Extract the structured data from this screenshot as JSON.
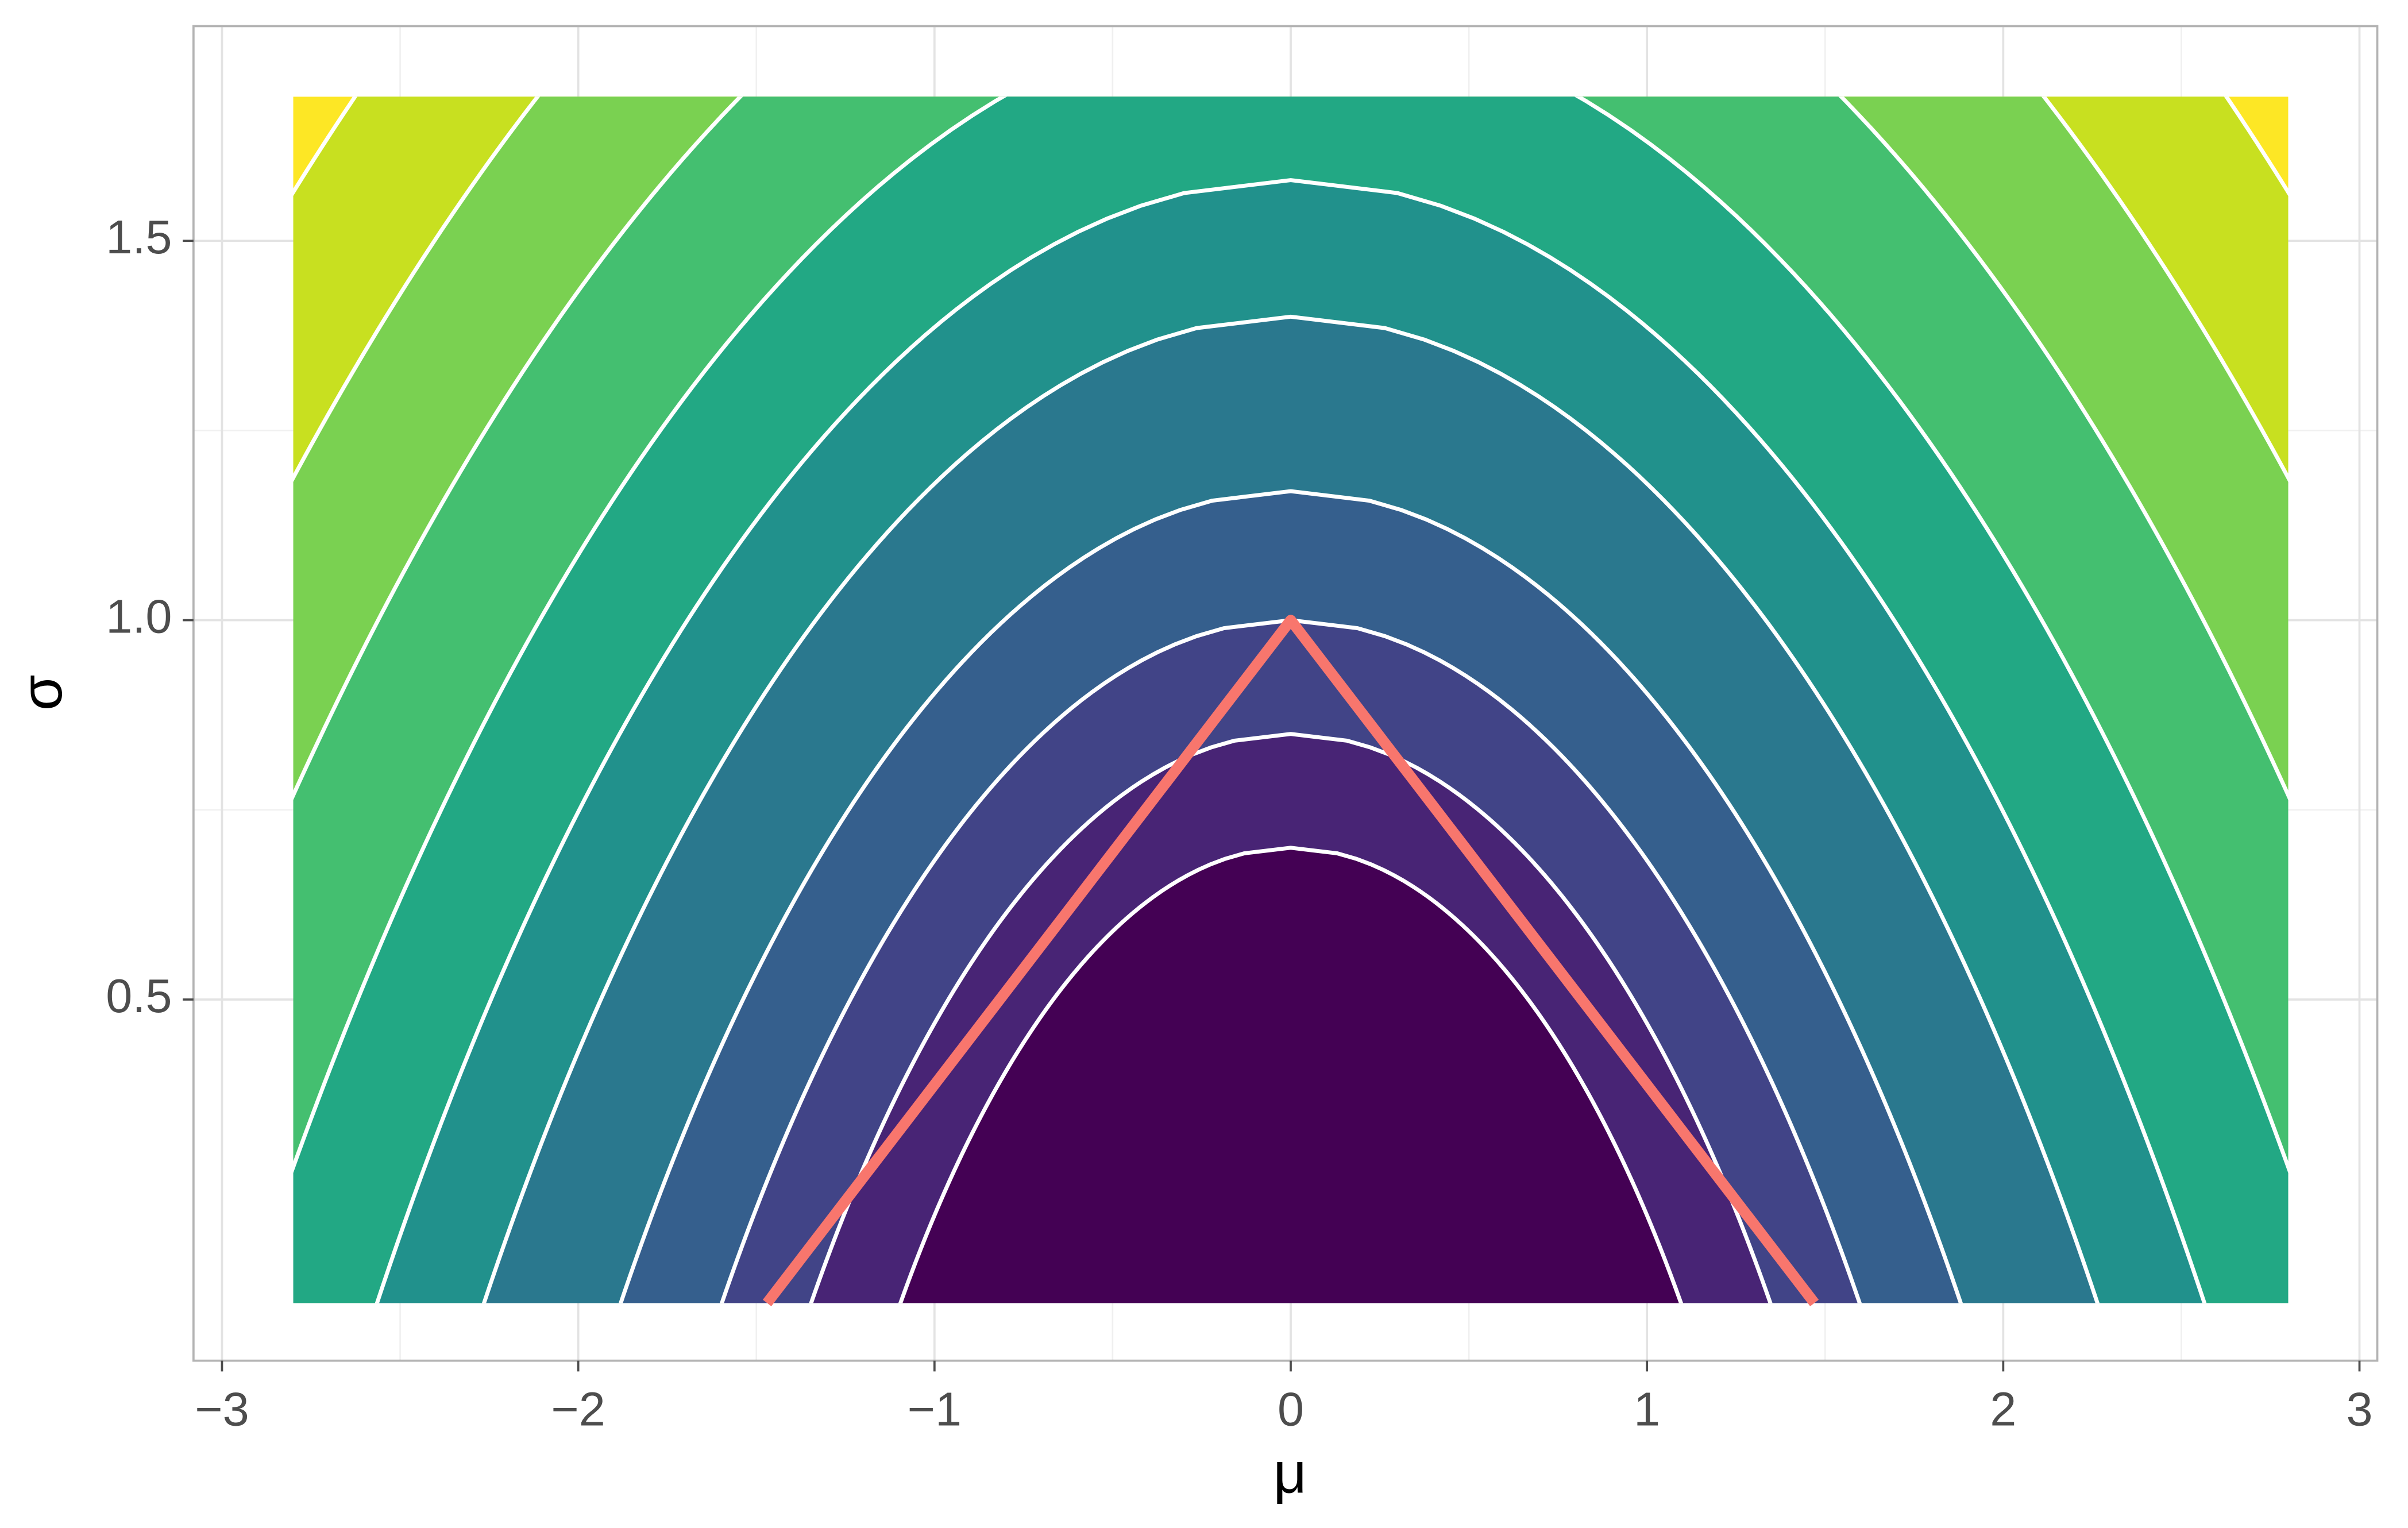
{
  "chart_data": {
    "type": "contour",
    "x_label": "μ",
    "y_label": "σ",
    "xlim": [
      -3.08,
      3.05
    ],
    "ylim": [
      0.024,
      1.783
    ],
    "xticks": [
      {
        "value": -3,
        "label": "−3"
      },
      {
        "value": -2,
        "label": "−2"
      },
      {
        "value": -1,
        "label": "−1"
      },
      0,
      1,
      2,
      3
    ],
    "yticks": [
      {
        "value": 0.5,
        "label": "0.5"
      },
      {
        "value": 1,
        "label": "1.0"
      },
      {
        "value": 1.5,
        "label": "1.5"
      }
    ],
    "grid": true,
    "field": {
      "xrange": [
        -2.8,
        2.8
      ],
      "yrange": [
        0.1,
        1.69
      ],
      "levels": [
        0.7,
        0.85,
        1.0,
        1.17,
        1.4,
        1.58,
        1.8,
        2.05,
        2.3,
        2.55
      ],
      "colors": [
        "#440154",
        "#482475",
        "#414487",
        "#355f8d",
        "#2a788e",
        "#21918c",
        "#22a884",
        "#44bf70",
        "#7ad151",
        "#c8e020",
        "#fde725"
      ]
    },
    "series": [
      {
        "color": "#f8766d",
        "x": [
          -1.47,
          0,
          1.47
        ],
        "values": [
          0.1,
          1.0,
          0.1
        ]
      }
    ]
  }
}
